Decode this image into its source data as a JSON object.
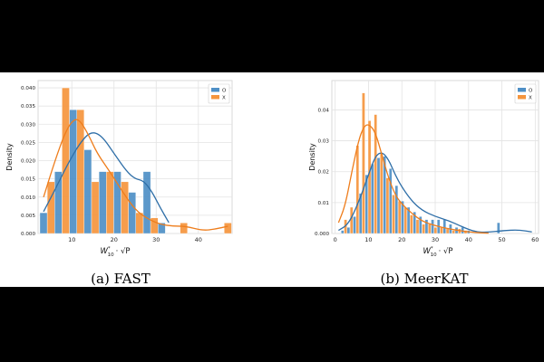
{
  "chart_data": [
    {
      "type": "bar",
      "caption": "(a) FAST",
      "ylabel": "Density",
      "xlabel_base": "W",
      "xlabel_sub": "10",
      "xlabel_sup": "*",
      "xlabel_tail": "· √P",
      "xlim": [
        2,
        48
      ],
      "ylim": [
        0,
        0.042
      ],
      "xticks": [
        10,
        20,
        30,
        40
      ],
      "yticks": [
        0.0,
        0.005,
        0.01,
        0.015,
        0.02,
        0.025,
        0.03,
        0.035,
        0.04
      ],
      "ytick_labels": [
        "0.000",
        "0.005",
        "0.010",
        "0.015",
        "0.020",
        "0.025",
        "0.030",
        "0.035",
        "0.040"
      ],
      "legend": {
        "position": "top-right",
        "entries": [
          "O",
          "X"
        ]
      },
      "bar_width": 1.75,
      "series": [
        {
          "name": "O",
          "color": "#4e8fc6",
          "bars": [
            {
              "x": 3.3,
              "v": 0.0057
            },
            {
              "x": 6.8,
              "v": 0.017
            },
            {
              "x": 10.3,
              "v": 0.034
            },
            {
              "x": 13.8,
              "v": 0.023
            },
            {
              "x": 17.3,
              "v": 0.017
            },
            {
              "x": 20.8,
              "v": 0.017
            },
            {
              "x": 24.3,
              "v": 0.0113
            },
            {
              "x": 27.8,
              "v": 0.017
            },
            {
              "x": 31.3,
              "v": 0.0029
            }
          ],
          "kde": [
            [
              3.3,
              0.006
            ],
            [
              6,
              0.012
            ],
            [
              9,
              0.019
            ],
            [
              12,
              0.025
            ],
            [
              14.5,
              0.028
            ],
            [
              17,
              0.027
            ],
            [
              20,
              0.022
            ],
            [
              23,
              0.017
            ],
            [
              25,
              0.015
            ],
            [
              27,
              0.0145
            ],
            [
              29,
              0.0115
            ],
            [
              31,
              0.007
            ],
            [
              33,
              0.003
            ]
          ]
        },
        {
          "name": "X",
          "color": "#f5953d",
          "bars": [
            {
              "x": 5.05,
              "v": 0.0142
            },
            {
              "x": 8.55,
              "v": 0.04
            },
            {
              "x": 12.05,
              "v": 0.034
            },
            {
              "x": 15.55,
              "v": 0.0142
            },
            {
              "x": 19.05,
              "v": 0.017
            },
            {
              "x": 22.55,
              "v": 0.0142
            },
            {
              "x": 26.05,
              "v": 0.0057
            },
            {
              "x": 29.55,
              "v": 0.0043
            },
            {
              "x": 36.55,
              "v": 0.0029
            },
            {
              "x": 47.0,
              "v": 0.0029
            }
          ],
          "kde": [
            [
              3.3,
              0.01
            ],
            [
              6,
              0.02
            ],
            [
              8.5,
              0.028
            ],
            [
              10.5,
              0.0315
            ],
            [
              12,
              0.031
            ],
            [
              14,
              0.027
            ],
            [
              16,
              0.022
            ],
            [
              19,
              0.017
            ],
            [
              22,
              0.0115
            ],
            [
              25,
              0.0065
            ],
            [
              28,
              0.004
            ],
            [
              31,
              0.0025
            ],
            [
              34,
              0.002
            ],
            [
              37,
              0.002
            ],
            [
              41,
              0.0008
            ],
            [
              44,
              0.0012
            ],
            [
              47,
              0.002
            ]
          ]
        }
      ]
    },
    {
      "type": "bar",
      "caption": "(b) MeerKAT",
      "ylabel": "Density",
      "xlabel_base": "W",
      "xlabel_sub": "10",
      "xlabel_sup": "*",
      "xlabel_tail": "· √P",
      "xlim": [
        -1,
        61
      ],
      "ylim": [
        0,
        0.0495
      ],
      "xticks": [
        0,
        10,
        20,
        30,
        40,
        50,
        60
      ],
      "yticks": [
        0.0,
        0.01,
        0.02,
        0.03,
        0.04
      ],
      "ytick_labels": [
        "0.000",
        "0.01",
        "0.02",
        "0.03",
        "0.04"
      ],
      "legend": {
        "position": "top-right",
        "entries": [
          "O",
          "X"
        ]
      },
      "bar_width": 0.85,
      "series": [
        {
          "name": "O",
          "color": "#4e8fc6",
          "bars": [
            {
              "x": 2.2,
              "v": 0.001
            },
            {
              "x": 4.0,
              "v": 0.002
            },
            {
              "x": 5.8,
              "v": 0.0055
            },
            {
              "x": 7.6,
              "v": 0.013
            },
            {
              "x": 9.4,
              "v": 0.019
            },
            {
              "x": 11.2,
              "v": 0.0225
            },
            {
              "x": 13.0,
              "v": 0.0245
            },
            {
              "x": 14.8,
              "v": 0.025
            },
            {
              "x": 16.6,
              "v": 0.021
            },
            {
              "x": 18.4,
              "v": 0.0155
            },
            {
              "x": 20.2,
              "v": 0.0105
            },
            {
              "x": 22.0,
              "v": 0.0085
            },
            {
              "x": 23.8,
              "v": 0.007
            },
            {
              "x": 25.6,
              "v": 0.0055
            },
            {
              "x": 27.4,
              "v": 0.0045
            },
            {
              "x": 29.2,
              "v": 0.0045
            },
            {
              "x": 31.0,
              "v": 0.0045
            },
            {
              "x": 32.8,
              "v": 0.0045
            },
            {
              "x": 34.6,
              "v": 0.003
            },
            {
              "x": 36.4,
              "v": 0.002
            },
            {
              "x": 38.2,
              "v": 0.002
            },
            {
              "x": 40.0,
              "v": 0.001
            },
            {
              "x": 49.0,
              "v": 0.0035
            }
          ],
          "kde": [
            [
              1,
              0.001
            ],
            [
              4,
              0.003
            ],
            [
              7,
              0.01
            ],
            [
              10,
              0.019
            ],
            [
              12,
              0.025
            ],
            [
              14,
              0.0265
            ],
            [
              16,
              0.024
            ],
            [
              18,
              0.019
            ],
            [
              20,
              0.015
            ],
            [
              23,
              0.0105
            ],
            [
              26,
              0.0075
            ],
            [
              30,
              0.0055
            ],
            [
              34,
              0.0042
            ],
            [
              38,
              0.0022
            ],
            [
              42,
              0.0005
            ],
            [
              46,
              0.0004
            ],
            [
              50,
              0.0009
            ],
            [
              55,
              0.0012
            ],
            [
              59,
              0.0005
            ]
          ]
        },
        {
          "name": "X",
          "color": "#f5953d",
          "bars": [
            {
              "x": 3.1,
              "v": 0.0045
            },
            {
              "x": 4.9,
              "v": 0.0085
            },
            {
              "x": 6.7,
              "v": 0.0285
            },
            {
              "x": 8.5,
              "v": 0.0455
            },
            {
              "x": 10.3,
              "v": 0.0365
            },
            {
              "x": 12.1,
              "v": 0.0385
            },
            {
              "x": 13.9,
              "v": 0.026
            },
            {
              "x": 15.7,
              "v": 0.018
            },
            {
              "x": 17.5,
              "v": 0.0125
            },
            {
              "x": 19.3,
              "v": 0.0105
            },
            {
              "x": 21.1,
              "v": 0.0085
            },
            {
              "x": 22.9,
              "v": 0.006
            },
            {
              "x": 24.7,
              "v": 0.0045
            },
            {
              "x": 26.5,
              "v": 0.003
            },
            {
              "x": 28.3,
              "v": 0.003
            },
            {
              "x": 30.1,
              "v": 0.002
            },
            {
              "x": 31.9,
              "v": 0.002
            },
            {
              "x": 33.7,
              "v": 0.0015
            },
            {
              "x": 35.5,
              "v": 0.001
            },
            {
              "x": 37.3,
              "v": 0.0015
            },
            {
              "x": 39.1,
              "v": 0.001
            }
          ],
          "kde": [
            [
              1,
              0.0035
            ],
            [
              3,
              0.009
            ],
            [
              5,
              0.02
            ],
            [
              7,
              0.03
            ],
            [
              8.5,
              0.0345
            ],
            [
              10,
              0.0355
            ],
            [
              12,
              0.033
            ],
            [
              14,
              0.0255
            ],
            [
              16,
              0.018
            ],
            [
              18,
              0.0125
            ],
            [
              20,
              0.0095
            ],
            [
              23,
              0.0065
            ],
            [
              26,
              0.004
            ],
            [
              30,
              0.0025
            ],
            [
              34,
              0.0015
            ],
            [
              38,
              0.0008
            ],
            [
              42,
              0.0003
            ],
            [
              46,
              0.0001
            ]
          ]
        }
      ]
    }
  ]
}
